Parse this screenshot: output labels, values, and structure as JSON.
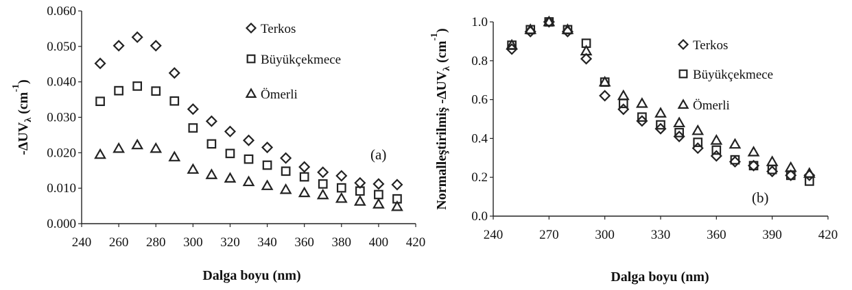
{
  "chart_data": [
    {
      "type": "scatter",
      "panel_label": "(a)",
      "xlabel": "Dalga boyu (nm)",
      "ylabel_main": "-ΔUV",
      "ylabel_sub": "λ",
      "ylabel_unit": " (cm",
      "ylabel_sup": "-1",
      "ylabel_close": ")",
      "xlim": [
        240,
        420
      ],
      "ylim": [
        0,
        0.06
      ],
      "xticks": [
        240,
        260,
        280,
        300,
        320,
        340,
        360,
        380,
        400,
        420
      ],
      "yticks": [
        "0.000",
        "0.010",
        "0.020",
        "0.030",
        "0.040",
        "0.050",
        "0.060"
      ],
      "grid": false,
      "legend_position": "top-right",
      "x": [
        250,
        260,
        270,
        280,
        290,
        300,
        310,
        320,
        330,
        340,
        350,
        360,
        370,
        380,
        390,
        400,
        410
      ],
      "series": [
        {
          "name": "Terkos",
          "marker": "diamond",
          "values": [
            0.0452,
            0.0502,
            0.0526,
            0.0502,
            0.0425,
            0.0323,
            0.0289,
            0.026,
            0.0235,
            0.0215,
            0.0185,
            0.016,
            0.0145,
            0.0135,
            0.0115,
            0.0112,
            0.011
          ]
        },
        {
          "name": "Büyükçekmece",
          "marker": "square",
          "values": [
            0.0345,
            0.0375,
            0.0388,
            0.0374,
            0.0346,
            0.027,
            0.0225,
            0.0198,
            0.0182,
            0.0165,
            0.0148,
            0.0132,
            0.0112,
            0.0101,
            0.0092,
            0.0082,
            0.007
          ]
        },
        {
          "name": "Ömerli",
          "marker": "triangle",
          "values": [
            0.0195,
            0.0212,
            0.0222,
            0.0212,
            0.0188,
            0.0153,
            0.0138,
            0.0128,
            0.0118,
            0.0107,
            0.0096,
            0.0087,
            0.0081,
            0.0071,
            0.0063,
            0.0055,
            0.0048
          ]
        }
      ]
    },
    {
      "type": "scatter",
      "panel_label": "(b)",
      "xlabel": "Dalga boyu (nm)",
      "ylabel_main": "Normalleştirilmiş -ΔUV",
      "ylabel_sub": "λ",
      "ylabel_unit": " (cm",
      "ylabel_sup": "-1",
      "ylabel_close": ")",
      "xlim": [
        240,
        420
      ],
      "ylim": [
        0,
        1.0
      ],
      "xticks": [
        240,
        270,
        300,
        330,
        360,
        390,
        420
      ],
      "yticks": [
        "0.0",
        "0.2",
        "0.4",
        "0.6",
        "0.8",
        "1.0"
      ],
      "grid": false,
      "legend_position": "top-right",
      "x": [
        250,
        260,
        270,
        280,
        290,
        300,
        310,
        320,
        330,
        340,
        350,
        360,
        370,
        380,
        390,
        400,
        410
      ],
      "series": [
        {
          "name": "Terkos",
          "marker": "diamond",
          "values": [
            0.86,
            0.95,
            1.0,
            0.95,
            0.81,
            0.62,
            0.55,
            0.49,
            0.45,
            0.41,
            0.35,
            0.31,
            0.28,
            0.26,
            0.23,
            0.21,
            0.21
          ]
        },
        {
          "name": "Büyükçekmece",
          "marker": "square",
          "values": [
            0.88,
            0.96,
            1.0,
            0.96,
            0.89,
            0.69,
            0.58,
            0.51,
            0.47,
            0.43,
            0.38,
            0.34,
            0.29,
            0.26,
            0.24,
            0.21,
            0.18
          ]
        },
        {
          "name": "Ömerli",
          "marker": "triangle",
          "values": [
            0.88,
            0.96,
            1.0,
            0.96,
            0.85,
            0.69,
            0.62,
            0.58,
            0.53,
            0.48,
            0.44,
            0.39,
            0.37,
            0.33,
            0.28,
            0.25,
            0.22
          ]
        }
      ]
    }
  ]
}
